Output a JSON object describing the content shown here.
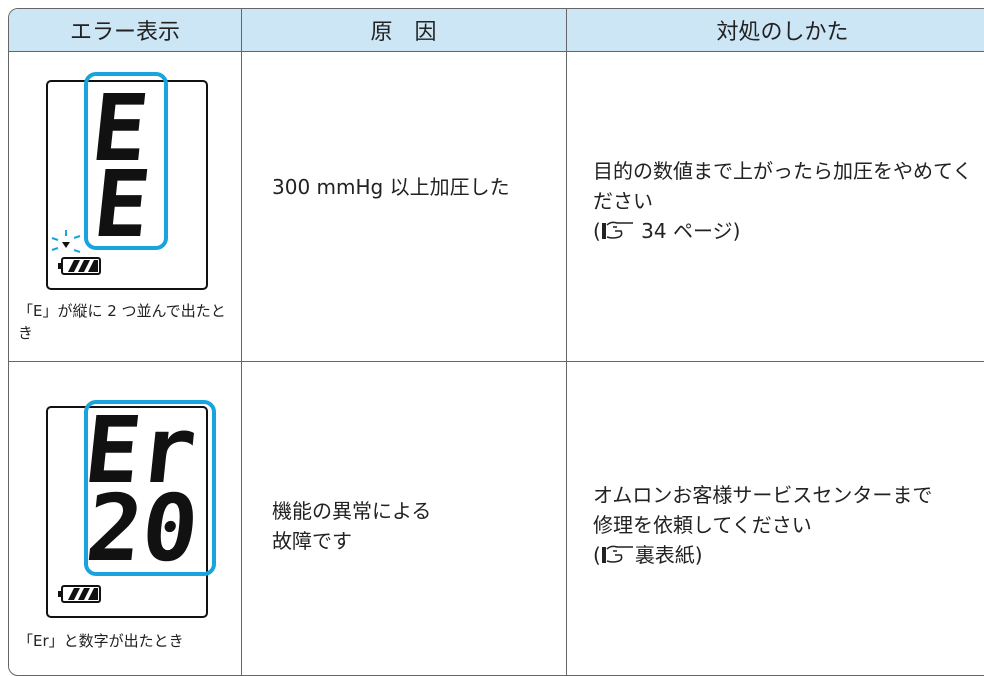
{
  "header": {
    "columns": [
      "エラー表示",
      "原　因",
      "対処のしかた"
    ]
  },
  "rows": [
    {
      "display": [
        "E",
        "E"
      ],
      "caption": "「E」が縦に 2 つ並んで出たとき",
      "cause": [
        "300 mmHg 以上加圧した"
      ],
      "remedy": "目的の数値まで上がったら加圧をやめてください",
      "ref_open": "(",
      "ref_text": " 34 ページ)"
    },
    {
      "display": [
        "Er",
        "20"
      ],
      "caption": "「Er」と数字が出たとき",
      "cause": [
        "機能の異常による",
        "故障です"
      ],
      "remedy": "オムロンお客様サービスセンターまで修理を依頼してください",
      "ref_open": "(",
      "ref_text": "裏表紙)"
    }
  ]
}
